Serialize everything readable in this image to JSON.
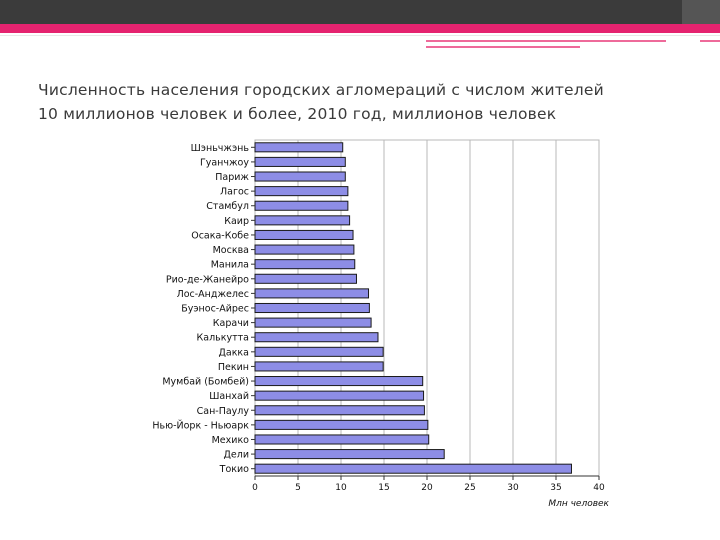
{
  "slide": {
    "title_line1": "Численность населения городских агломераций с числом жителей",
    "title_line2": "10 миллионов человек и более, 2010 год, миллионов человек",
    "accent_color": "#e5236f",
    "bar_color": "#8d8de6"
  },
  "chart_data": {
    "type": "bar",
    "orientation": "horizontal",
    "title": "",
    "xlabel": "Млн человек",
    "ylabel": "",
    "xlim": [
      0,
      40
    ],
    "xticks": [
      0,
      5,
      10,
      15,
      20,
      25,
      30,
      35,
      40
    ],
    "grid": true,
    "categories": [
      "Шэньчжэнь",
      "Гуанчжоу",
      "Париж",
      "Лагос",
      "Стамбул",
      "Каир",
      "Осака-Кобе",
      "Москва",
      "Манила",
      "Рио-де-Жанейро",
      "Лос-Анджелес",
      "Буэнос-Айрес",
      "Карачи",
      "Калькутта",
      "Дакка",
      "Пекин",
      "Мумбай (Бомбей)",
      "Шанхай",
      "Сан-Паулу",
      "Нью-Йорк - Ньюарк",
      "Мехико",
      "Дели",
      "Токио"
    ],
    "values": [
      10.2,
      10.5,
      10.5,
      10.8,
      10.8,
      11.0,
      11.4,
      11.5,
      11.6,
      11.8,
      13.2,
      13.3,
      13.5,
      14.3,
      14.9,
      14.9,
      19.5,
      19.6,
      19.7,
      20.1,
      20.2,
      22.0,
      36.8
    ]
  }
}
